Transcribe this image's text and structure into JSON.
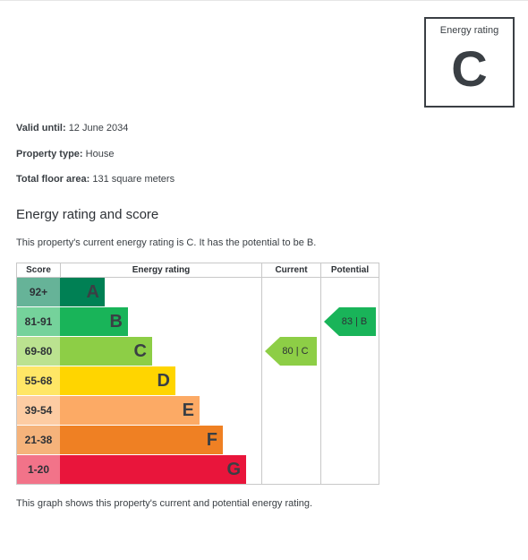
{
  "rating_box": {
    "caption": "Energy rating",
    "letter": "C"
  },
  "meta": {
    "valid_label": "Valid until:",
    "valid_value": "12 June 2034",
    "type_label": "Property type:",
    "type_value": "House",
    "area_label": "Total floor area:",
    "area_value": "131 square meters"
  },
  "section_title": "Energy rating and score",
  "description": "This property's current energy rating is C. It has the potential to be B.",
  "footer": "This graph shows this property's current and potential energy rating.",
  "chart_data": {
    "type": "table",
    "headers": {
      "score": "Score",
      "rating": "Energy rating",
      "current": "Current",
      "potential": "Potential"
    },
    "bands": [
      {
        "score": "92+",
        "letter": "A",
        "color": "#008054",
        "score_color": "#66b398",
        "length": 1
      },
      {
        "score": "81-91",
        "letter": "B",
        "color": "#19b459",
        "score_color": "#75d29b",
        "length": 2
      },
      {
        "score": "69-80",
        "letter": "C",
        "color": "#8dce46",
        "score_color": "#bbe290",
        "length": 3
      },
      {
        "score": "55-68",
        "letter": "D",
        "color": "#ffd500",
        "score_color": "#ffe666",
        "length": 4
      },
      {
        "score": "39-54",
        "letter": "E",
        "color": "#fcaa65",
        "score_color": "#fdcca3",
        "length": 5
      },
      {
        "score": "21-38",
        "letter": "F",
        "color": "#ef8023",
        "score_color": "#f5b37b",
        "length": 6
      },
      {
        "score": "1-20",
        "letter": "G",
        "color": "#e9153b",
        "score_color": "#f27389",
        "length": 7
      }
    ],
    "current": {
      "label": "80 | C",
      "score": 80,
      "band": "C",
      "color": "#8dce46"
    },
    "potential": {
      "label": "83 | B",
      "score": 83,
      "band": "B",
      "color": "#19b459"
    }
  }
}
